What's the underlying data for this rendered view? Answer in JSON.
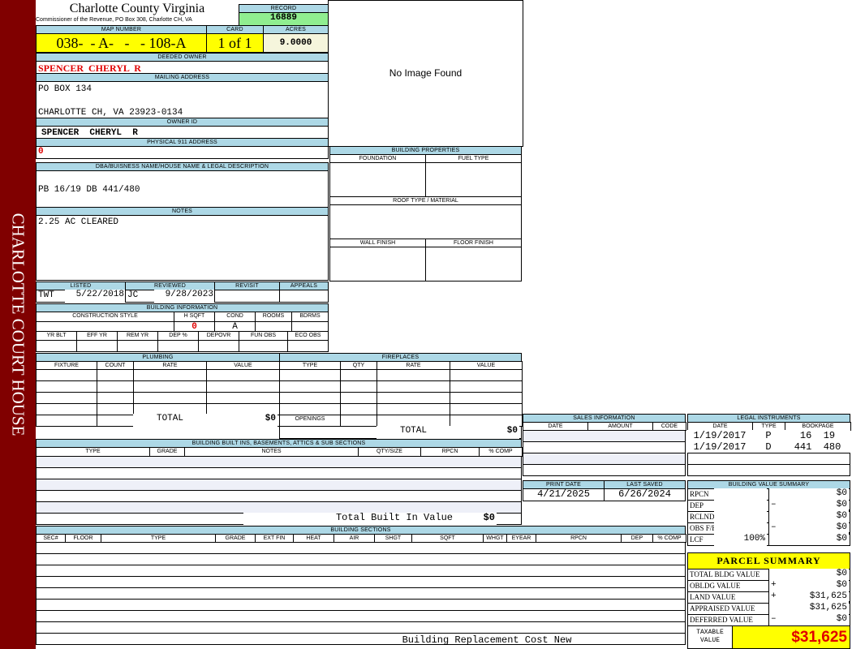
{
  "header": {
    "title": "Charlotte County Virginia",
    "subtitle": "Commissioner of the Revenue, PO Box 308, Charlotte CH, VA",
    "side_text": "CHARLOTTE COURT HOUSE"
  },
  "record": {
    "label": "RECORD",
    "value": "16889"
  },
  "map": {
    "label": "MAP NUMBER",
    "value": "038-  - A-   -   - 108-A"
  },
  "card": {
    "label": "CARD",
    "value": "1 of 1"
  },
  "acres": {
    "label": "ACRES",
    "value": "9.0000"
  },
  "owner": {
    "label": "DEEDED OWNER",
    "value": "SPENCER  CHERYL  R"
  },
  "mailing": {
    "label": "MAILING ADDRESS",
    "line1": "PO BOX 134",
    "line2": "CHARLOTTE CH, VA 23923-0134"
  },
  "owner_id": {
    "label": "OWNER ID",
    "value": "SPENCER  CHERYL  R"
  },
  "physical": {
    "label": "PHYSICAL 911 ADDRESS",
    "value": "0"
  },
  "dba": {
    "label": "DBA/BUISNESS NAME/HOUSE NAME & LEGAL DESCRIPTION",
    "value": "PB 16/19 DB 441/480"
  },
  "notes": {
    "label": "NOTES",
    "value": "2.25 AC CLEARED"
  },
  "image": {
    "text": "No Image Found"
  },
  "building_properties": {
    "title": "BUILDING PROPERTIES",
    "foundation": "FOUNDATION",
    "fuel_type": "FUEL TYPE",
    "roof": "ROOF TYPE / MATERIAL",
    "wall": "WALL FINISH",
    "floor": "FLOOR FINISH"
  },
  "listing": {
    "listed_label": "LISTED",
    "listed_by": "TWT",
    "listed_date": "5/22/2018",
    "reviewed_label": "REVIEWED",
    "reviewed_by": "JC",
    "reviewed_date": "9/28/2023",
    "revisit_label": "REVISIT",
    "appeals_label": "APPEALS"
  },
  "building_info": {
    "title": "BUILDING INFORMATION",
    "headers1": [
      "CONSTRUCTION STYLE",
      "H SQFT",
      "COND",
      "ROOMS",
      "BDRMS"
    ],
    "values1": [
      "",
      "0",
      "A",
      "",
      ""
    ],
    "headers2": [
      "YR BLT",
      "EFF YR",
      "REM YR",
      "DEP %",
      "DEPOVR",
      "FUN OBS",
      "ECO OBS"
    ]
  },
  "plumbing": {
    "title": "PLUMBING",
    "headers": [
      "FIXTURE",
      "COUNT",
      "RATE",
      "VALUE"
    ],
    "total_label": "TOTAL",
    "total": "$0"
  },
  "fireplaces": {
    "title": "FIREPLACES",
    "headers": [
      "TYPE",
      "QTY",
      "RATE",
      "VALUE"
    ],
    "openings_label": "OPENINGS",
    "total_label": "TOTAL",
    "total": "$0"
  },
  "sales": {
    "title": "SALES INFORMATION",
    "headers": [
      "DATE",
      "AMOUNT",
      "CODE"
    ]
  },
  "legal": {
    "title": "LEGAL INSTRUMENTS",
    "headers": [
      "DATE",
      "TYPE",
      "BOOKPAGE"
    ],
    "rows": [
      [
        "1/19/2017",
        "P",
        "16  19"
      ],
      [
        "1/19/2017",
        "D",
        "441  480"
      ]
    ]
  },
  "dates": {
    "print_label": "PRINT DATE",
    "print_value": "4/21/2025",
    "saved_label": "LAST SAVED",
    "saved_value": "6/26/2024"
  },
  "bvs": {
    "title": "BUILDING VALUE SUMMARY",
    "rows": [
      {
        "label": "RPCN",
        "extra": "",
        "sign": "",
        "value": "$0"
      },
      {
        "label": "DEP",
        "extra": "",
        "sign": "–",
        "value": "$0"
      },
      {
        "label": "RCLND",
        "extra": "",
        "sign": "",
        "value": "$0"
      },
      {
        "label": "OBS F/E",
        "extra": "",
        "sign": "–",
        "value": "$0"
      },
      {
        "label": "LCF",
        "extra": "100%",
        "sign": "",
        "value": "$0"
      }
    ]
  },
  "parcel": {
    "title": "PARCEL SUMMARY",
    "rows": [
      {
        "label": "TOTAL BLDG VALUE",
        "sign": "",
        "value": "$0"
      },
      {
        "label": "OBLDG VALUE",
        "sign": "+",
        "value": "$0"
      },
      {
        "label": "LAND VALUE",
        "sign": "+",
        "value": "$31,625"
      },
      {
        "label": "APPRAISED VALUE",
        "sign": "",
        "value": "$31,625"
      },
      {
        "label": "DEFERRED VALUE",
        "sign": "–",
        "value": "$0"
      }
    ],
    "taxable_label": "TAXABLE\nVALUE",
    "taxable_value": "$31,625"
  },
  "builtins": {
    "title": "BUILDING BUILT INS, BASEMENTS, ATTICS & SUB SECTIONS",
    "headers": [
      "TYPE",
      "GRADE",
      "NOTES",
      "QTY/SIZE",
      "RPCN",
      "% COMP"
    ],
    "total_label": "Total Built In Value",
    "total": "$0"
  },
  "sections": {
    "title": "BUILDING SECTIONS",
    "headers": [
      "SEC#",
      "FLOOR",
      "TYPE",
      "GRADE",
      "EXT FIN",
      "HEAT",
      "AIR",
      "SHGT",
      "SQFT",
      "WHGT",
      "EYEAR",
      "RPCN",
      "DEP",
      "% COMP"
    ],
    "footer_label": "Building Replacement Cost New"
  }
}
